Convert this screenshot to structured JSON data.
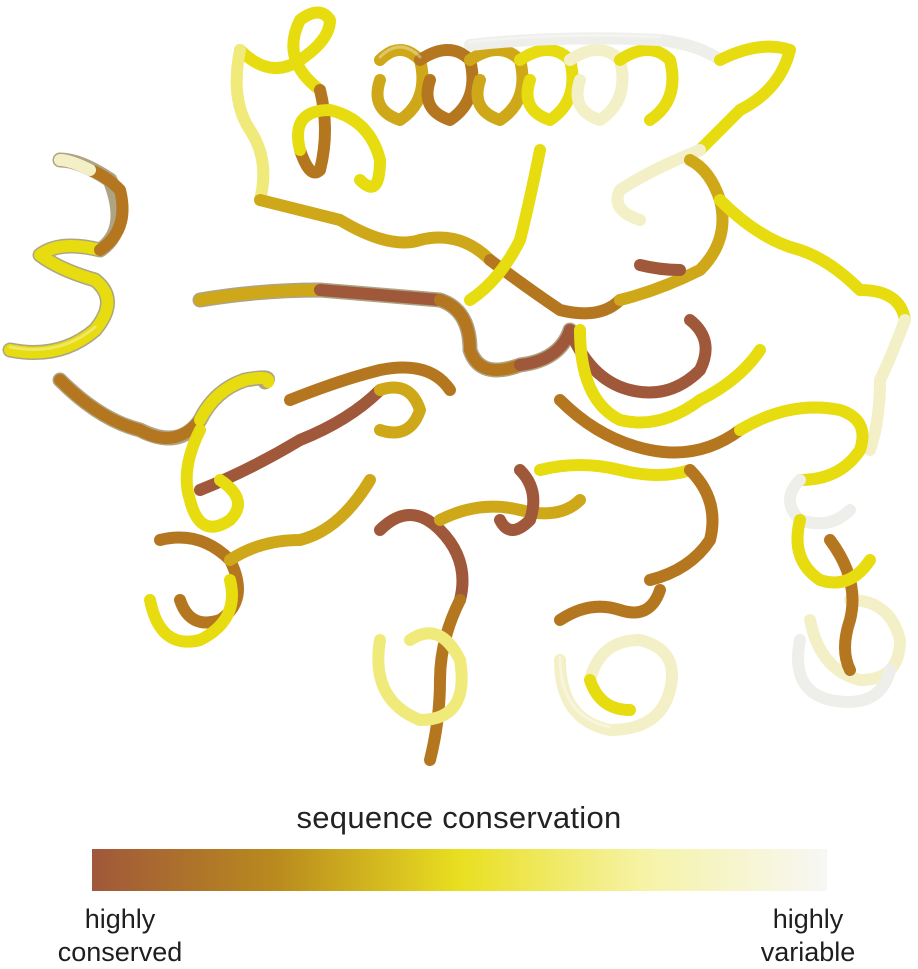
{
  "figure": {
    "legend_title": "sequence conservation",
    "low_label_line1": "highly",
    "low_label_line2": "conserved",
    "high_label_line1": "highly",
    "high_label_line2": "variable"
  },
  "colors": {
    "scale": [
      "#a0583a",
      "#b98a1e",
      "#e9df20",
      "#f6f3a6",
      "#f7f7f5"
    ],
    "tube_shades": [
      "#a0583a",
      "#b4771f",
      "#cfa81a",
      "#e6dc10",
      "#f0ea7a",
      "#f3f0c8",
      "#eeeeea"
    ]
  }
}
